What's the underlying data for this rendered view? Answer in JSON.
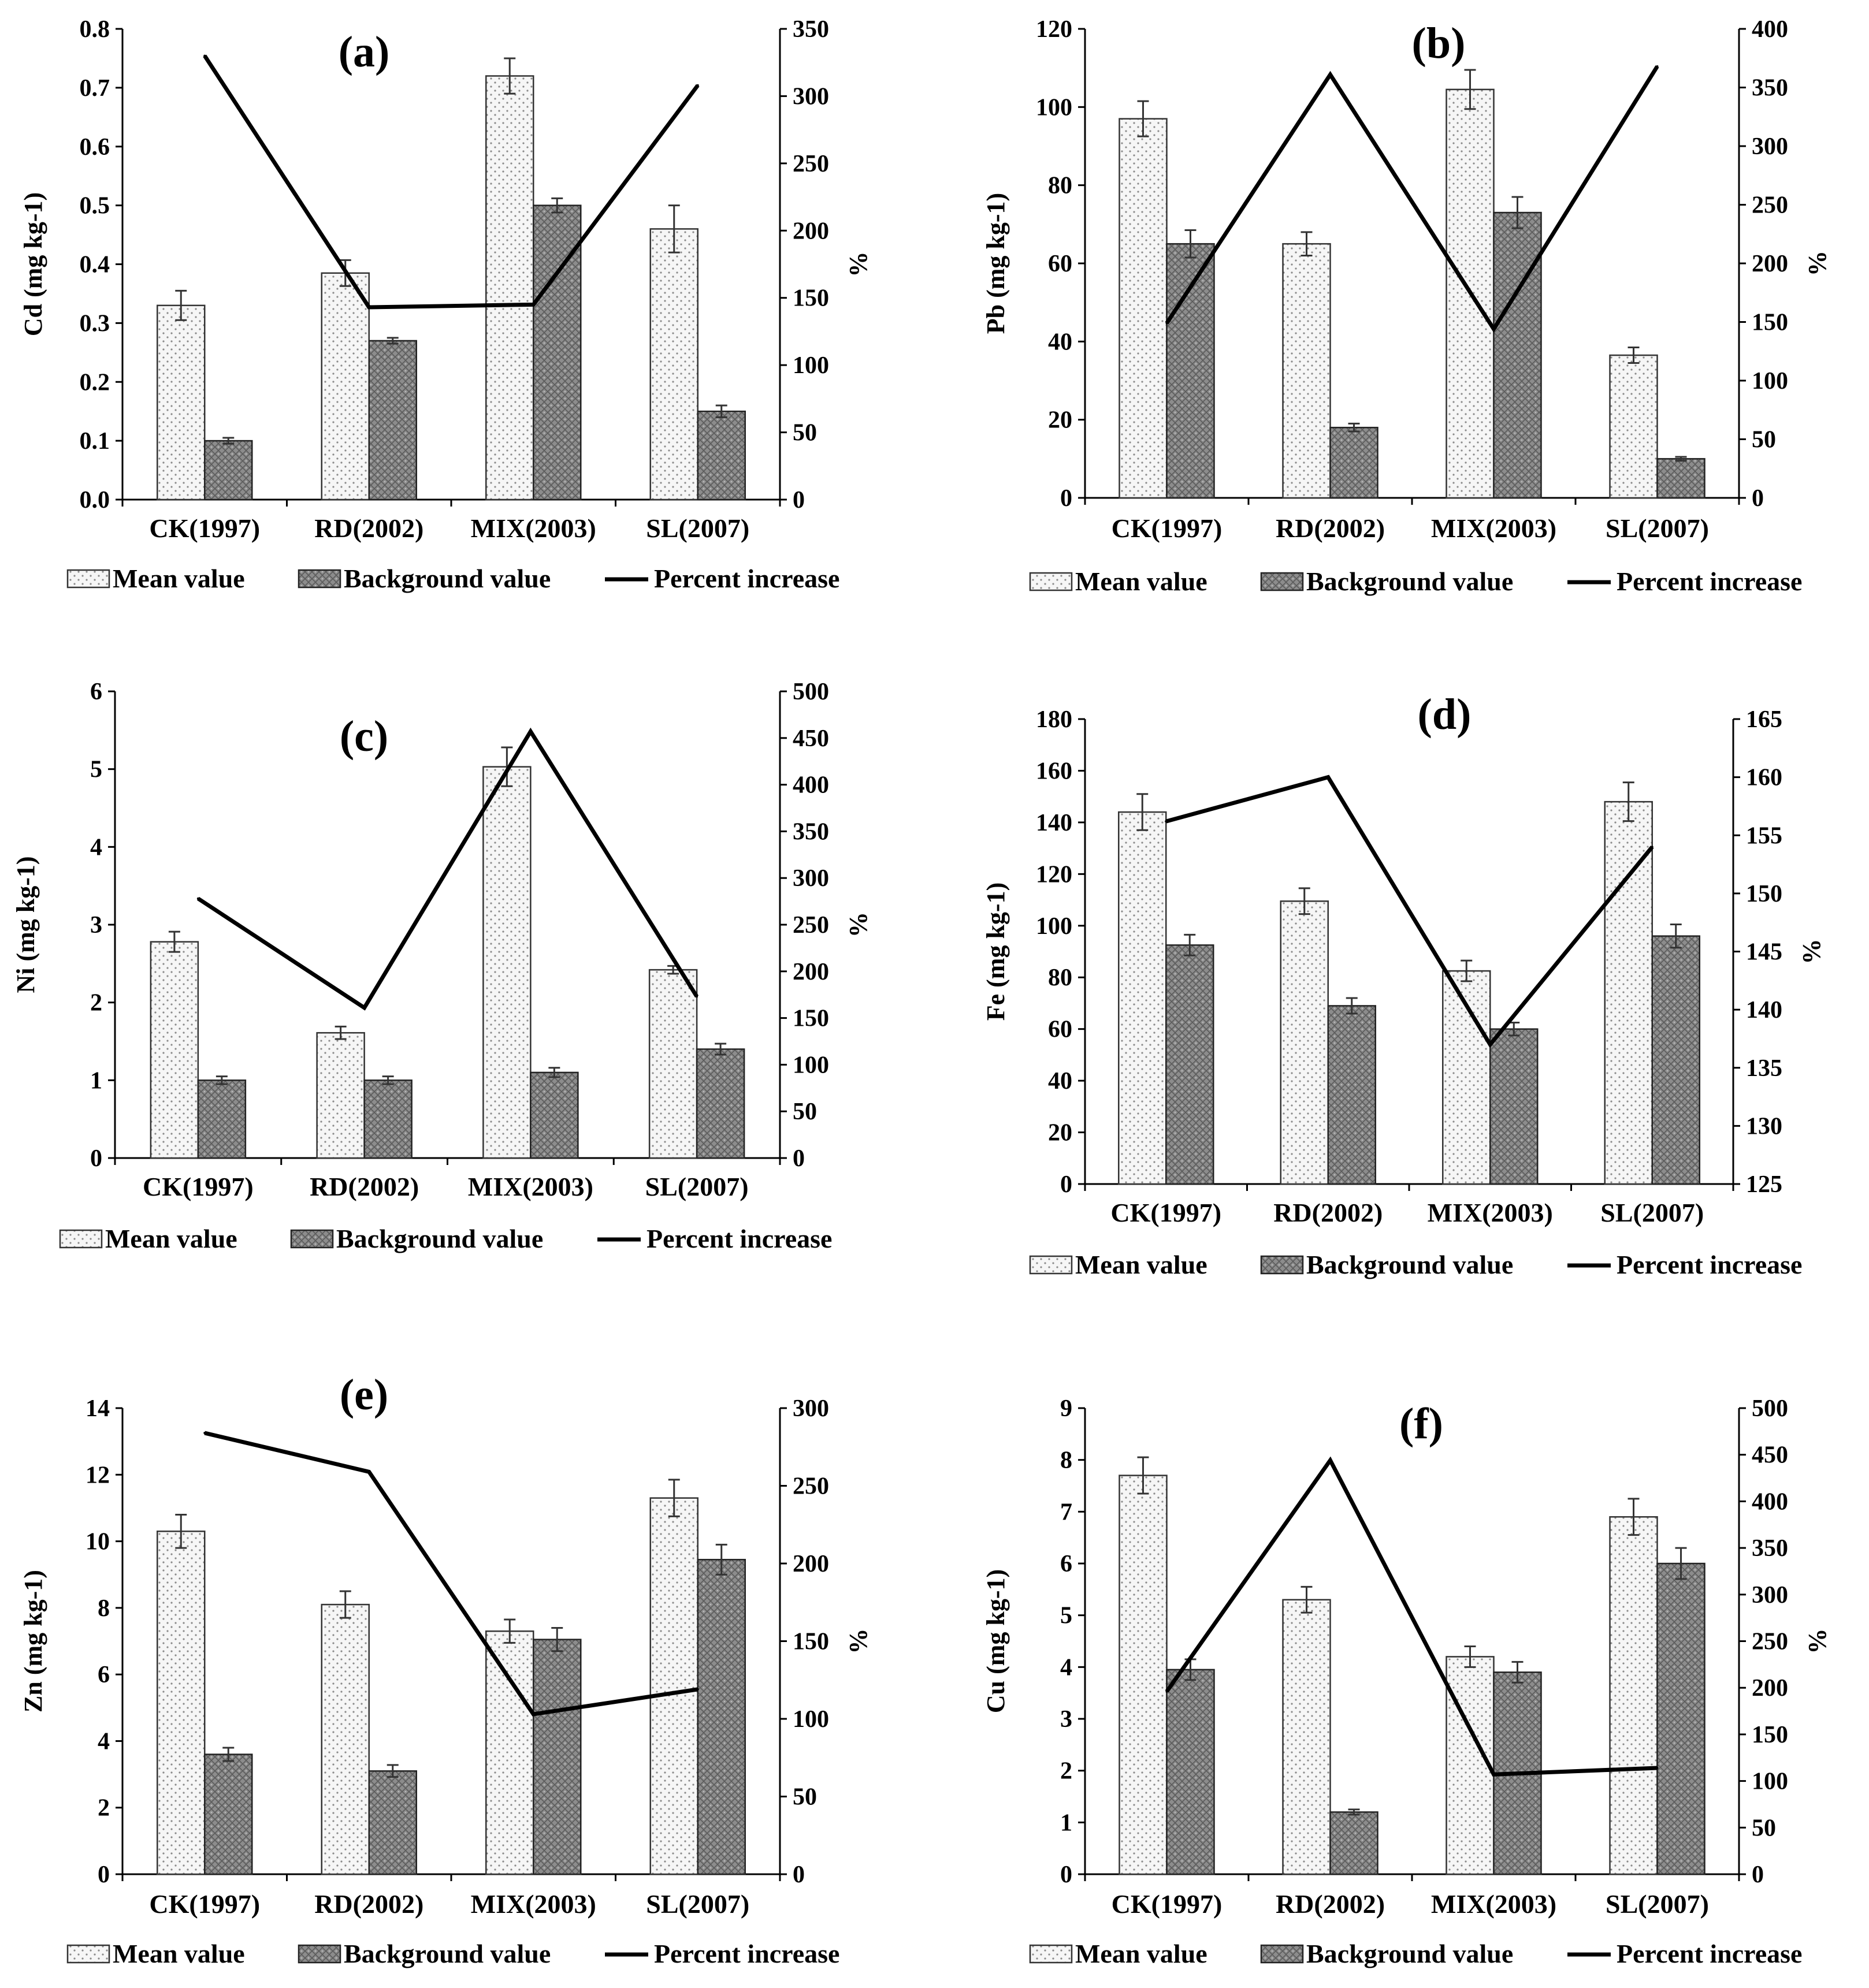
{
  "legend": {
    "mean_label": "Mean value",
    "background_label": "Background value",
    "percent_label": "Percent increase"
  },
  "colors": {
    "mean_fill": "#f4f4f4",
    "background_fill": "#8a8a8a",
    "line": "#000000"
  },
  "chart_data": [
    {
      "type": "bar",
      "panel": "(a)",
      "ylabel": "Cd (mg kg-1)",
      "y2label": "%",
      "categories": [
        "CK(1997)",
        "RD(2002)",
        "MIX(2003)",
        "SL(2007)"
      ],
      "ylim": [
        0,
        0.8
      ],
      "yticks": [
        "0.0",
        "0.1",
        "0.2",
        "0.3",
        "0.4",
        "0.5",
        "0.6",
        "0.7",
        "0.8"
      ],
      "y2lim": [
        0,
        350
      ],
      "y2ticks": [
        "0",
        "50",
        "100",
        "150",
        "200",
        "250",
        "300",
        "350"
      ],
      "series": [
        {
          "name": "Mean value",
          "values": [
            0.33,
            0.385,
            0.72,
            0.46
          ],
          "errors": [
            0.025,
            0.022,
            0.03,
            0.04
          ]
        },
        {
          "name": "Background value",
          "values": [
            0.1,
            0.27,
            0.5,
            0.15
          ],
          "errors": [
            0.005,
            0.005,
            0.012,
            0.01
          ]
        },
        {
          "name": "Percent increase",
          "axis": "secondary",
          "values": [
            330,
            143,
            145,
            308
          ]
        }
      ]
    },
    {
      "type": "bar",
      "panel": "(b)",
      "ylabel": "Pb (mg kg-1)",
      "y2label": "%",
      "categories": [
        "CK(1997)",
        "RD(2002)",
        "MIX(2003)",
        "SL(2007)"
      ],
      "ylim": [
        0,
        120
      ],
      "yticks": [
        "0",
        "20",
        "40",
        "60",
        "80",
        "100",
        "120"
      ],
      "y2lim": [
        0,
        400
      ],
      "y2ticks": [
        "0",
        "50",
        "100",
        "150",
        "200",
        "250",
        "300",
        "350",
        "400"
      ],
      "series": [
        {
          "name": "Mean value",
          "values": [
            97,
            65,
            104.5,
            36.5
          ],
          "errors": [
            4.5,
            3,
            5,
            2
          ]
        },
        {
          "name": "Background value",
          "values": [
            65,
            18,
            73,
            10
          ],
          "errors": [
            3.5,
            1,
            4,
            0.5
          ]
        },
        {
          "name": "Percent increase",
          "axis": "secondary",
          "values": [
            149,
            361,
            144,
            368
          ]
        }
      ]
    },
    {
      "type": "bar",
      "panel": "(c)",
      "ylabel": "Ni (mg kg-1)",
      "y2label": "%",
      "categories": [
        "CK(1997)",
        "RD(2002)",
        "MIX(2003)",
        "SL(2007)"
      ],
      "ylim": [
        0,
        6
      ],
      "yticks": [
        "0",
        "1",
        "2",
        "3",
        "4",
        "5",
        "6"
      ],
      "y2lim": [
        0,
        500
      ],
      "y2ticks": [
        "0",
        "50",
        "100",
        "150",
        "200",
        "250",
        "300",
        "350",
        "400",
        "450",
        "500"
      ],
      "series": [
        {
          "name": "Mean value",
          "values": [
            2.78,
            1.61,
            5.03,
            2.42
          ],
          "errors": [
            0.13,
            0.08,
            0.25,
            0.05
          ]
        },
        {
          "name": "Background value",
          "values": [
            1.0,
            1.0,
            1.1,
            1.4
          ],
          "errors": [
            0.05,
            0.05,
            0.06,
            0.07
          ]
        },
        {
          "name": "Percent increase",
          "axis": "secondary",
          "values": [
            278,
            161,
            457,
            173
          ]
        }
      ]
    },
    {
      "type": "bar",
      "panel": "(d)",
      "ylabel": "Fe (mg kg-1)",
      "y2label": "%",
      "categories": [
        "CK(1997)",
        "RD(2002)",
        "MIX(2003)",
        "SL(2007)"
      ],
      "ylim": [
        0,
        180
      ],
      "yticks": [
        "0",
        "20",
        "40",
        "60",
        "80",
        "100",
        "120",
        "140",
        "160",
        "180"
      ],
      "y2lim": [
        125,
        165
      ],
      "y2ticks": [
        "125",
        "130",
        "135",
        "140",
        "145",
        "150",
        "155",
        "160",
        "165"
      ],
      "series": [
        {
          "name": "Mean value",
          "values": [
            144,
            109.5,
            82.5,
            148
          ],
          "errors": [
            7,
            5,
            4,
            7.5
          ]
        },
        {
          "name": "Background value",
          "values": [
            92.5,
            69,
            60,
            96
          ],
          "errors": [
            4,
            3,
            2.5,
            4.5
          ]
        },
        {
          "name": "Percent increase",
          "axis": "secondary",
          "values": [
            156.2,
            160,
            137,
            154
          ]
        }
      ]
    },
    {
      "type": "bar",
      "panel": "(e)",
      "ylabel": "Zn (mg kg-1)",
      "y2label": "%",
      "categories": [
        "CK(1997)",
        "RD(2002)",
        "MIX(2003)",
        "SL(2007)"
      ],
      "ylim": [
        0,
        14
      ],
      "yticks": [
        "0",
        "2",
        "4",
        "6",
        "8",
        "10",
        "12",
        "14"
      ],
      "y2lim": [
        0,
        300
      ],
      "y2ticks": [
        "0",
        "50",
        "100",
        "150",
        "200",
        "250",
        "300"
      ],
      "series": [
        {
          "name": "Mean value",
          "values": [
            10.3,
            8.1,
            7.3,
            11.3
          ],
          "errors": [
            0.5,
            0.4,
            0.35,
            0.55
          ]
        },
        {
          "name": "Background value",
          "values": [
            3.6,
            3.1,
            7.05,
            9.45
          ],
          "errors": [
            0.2,
            0.18,
            0.35,
            0.45
          ]
        },
        {
          "name": "Percent increase",
          "axis": "secondary",
          "values": [
            284,
            259,
            103,
            119
          ]
        }
      ]
    },
    {
      "type": "bar",
      "panel": "(f)",
      "ylabel": "Cu (mg kg-1)",
      "y2label": "%",
      "categories": [
        "CK(1997)",
        "RD(2002)",
        "MIX(2003)",
        "SL(2007)"
      ],
      "ylim": [
        0,
        9
      ],
      "yticks": [
        "0",
        "1",
        "2",
        "3",
        "4",
        "5",
        "6",
        "7",
        "8",
        "9"
      ],
      "y2lim": [
        0,
        500
      ],
      "y2ticks": [
        "0",
        "50",
        "100",
        "150",
        "200",
        "250",
        "300",
        "350",
        "400",
        "450",
        "500"
      ],
      "series": [
        {
          "name": "Mean value",
          "values": [
            7.7,
            5.3,
            4.2,
            6.9
          ],
          "errors": [
            0.35,
            0.25,
            0.2,
            0.35
          ]
        },
        {
          "name": "Background value",
          "values": [
            3.95,
            1.2,
            3.9,
            6.0
          ],
          "errors": [
            0.2,
            0.05,
            0.2,
            0.3
          ]
        },
        {
          "name": "Percent increase",
          "axis": "secondary",
          "values": [
            196,
            444,
            107,
            114
          ]
        }
      ]
    }
  ]
}
